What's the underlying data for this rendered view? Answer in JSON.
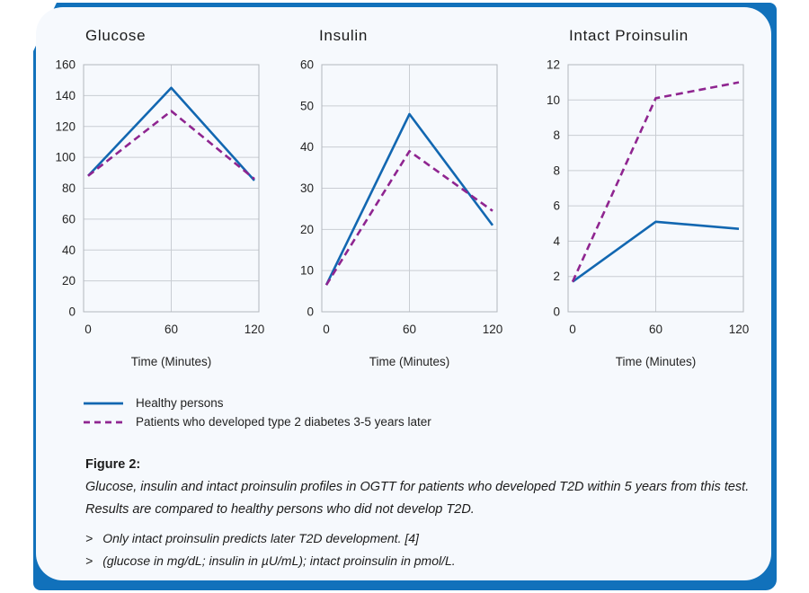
{
  "frame": {
    "accent_color": "#1171bb",
    "card_bg": "#f6f9fd",
    "healthy_color": "#1267b1",
    "t2d_color": "#8f2590"
  },
  "chart_data": [
    {
      "type": "line",
      "title": "Glucose",
      "xlabel": "Time (Minutes)",
      "x": [
        0,
        60,
        120
      ],
      "x_ticks": [
        "0",
        "60",
        "120"
      ],
      "y_ticks": [
        "0",
        "20",
        "40",
        "60",
        "80",
        "100",
        "120",
        "140",
        "160"
      ],
      "ylim": [
        0,
        160
      ],
      "grid": true,
      "unit_map": [
        [
          0,
          0
        ],
        [
          160,
          8
        ]
      ],
      "series": [
        {
          "name": "Healthy persons",
          "color": "#1267b1",
          "dash": false,
          "values": [
            88,
            145,
            85
          ]
        },
        {
          "name": "Patients who developed type 2 diabetes 3-5 years later",
          "color": "#8f2590",
          "dash": true,
          "values": [
            88,
            130,
            86
          ]
        }
      ]
    },
    {
      "type": "line",
      "title": "Insulin",
      "xlabel": "Time (Minutes)",
      "x": [
        0,
        60,
        120
      ],
      "x_ticks": [
        "0",
        "60",
        "120"
      ],
      "y_ticks": [
        "0",
        "10",
        "20",
        "30",
        "40",
        "50",
        "60"
      ],
      "ylim": [
        0,
        60
      ],
      "grid": true,
      "unit_map": [
        [
          0,
          0
        ],
        [
          60,
          6
        ]
      ],
      "series": [
        {
          "name": "Healthy persons",
          "color": "#1267b1",
          "dash": false,
          "values": [
            6.5,
            48,
            21
          ]
        },
        {
          "name": "Patients who developed type 2 diabetes 3-5 years later",
          "color": "#8f2590",
          "dash": true,
          "values": [
            6.5,
            39,
            24.5
          ]
        }
      ]
    },
    {
      "type": "line",
      "title": "Intact Proinsulin",
      "xlabel": "Time (Minutes)",
      "x": [
        0,
        60,
        120
      ],
      "x_ticks": [
        "0",
        "60",
        "120"
      ],
      "y_ticks": [
        "0",
        "2",
        "4",
        "6",
        "8",
        "8",
        "10",
        "12"
      ],
      "ylim": [
        0,
        12
      ],
      "grid": true,
      "unit_map": [
        [
          0,
          0
        ],
        [
          8,
          4
        ],
        [
          8,
          5
        ],
        [
          12,
          7
        ]
      ],
      "series": [
        {
          "name": "Healthy persons",
          "color": "#1267b1",
          "dash": false,
          "values": [
            1.7,
            5.1,
            4.7
          ]
        },
        {
          "name": "Patients who developed type 2 diabetes 3-5 years later",
          "color": "#8f2590",
          "dash": true,
          "values": [
            1.7,
            10.1,
            11
          ]
        }
      ]
    }
  ],
  "legend": [
    {
      "label": "Healthy persons",
      "color": "#1267b1",
      "dash": false
    },
    {
      "label": "Patients who developed type 2 diabetes 3-5 years later",
      "color": "#8f2590",
      "dash": true
    }
  ],
  "caption": {
    "title": "Figure 2:",
    "lines": [
      "Glucose, insulin and intact proinsulin profiles in OGTT for patients who developed T2D within 5 years from this test.",
      "Results are compared to healthy persons who did not develop T2D."
    ],
    "bullet_marker": ">",
    "bullets": [
      "Only intact proinsulin predicts later T2D development. [4]",
      "(glucose in mg/dL; insulin in µU/mL); intact proinsulin in pmol/L."
    ]
  }
}
